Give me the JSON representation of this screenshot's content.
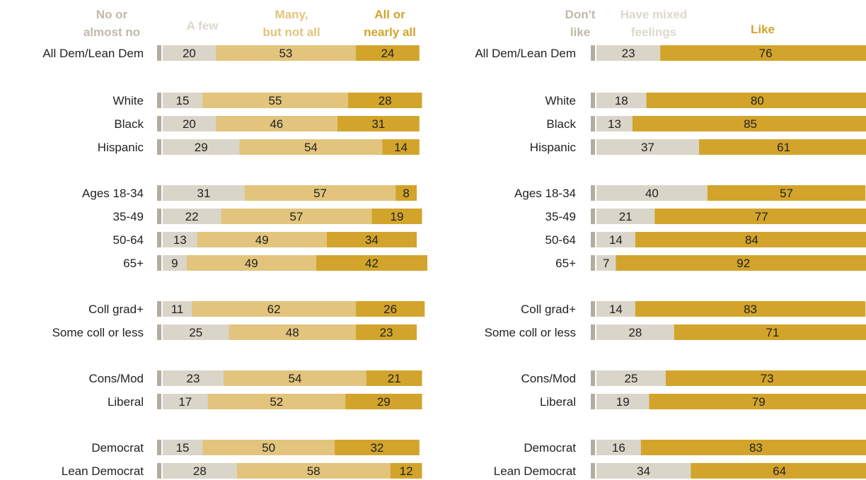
{
  "chart_data": [
    {
      "type": "bar",
      "stacked": "horizontal",
      "categories": [
        "All Dem/Lean Dem",
        "White",
        "Black",
        "Hispanic",
        "Ages 18-34",
        "35-49",
        "50-64",
        "65+",
        "Coll grad+",
        "Some coll or less",
        "Cons/Mod",
        "Liberal",
        "Democrat",
        "Lean Democrat"
      ],
      "series": [
        {
          "name": "No or almost no",
          "color": "#b3ad9f",
          "values": [
            null,
            null,
            null,
            null,
            null,
            null,
            null,
            null,
            null,
            null,
            null,
            null,
            null,
            null
          ]
        },
        {
          "name": "A few",
          "color": "#d9d5c8",
          "values": [
            20,
            15,
            20,
            29,
            31,
            22,
            13,
            9,
            11,
            25,
            23,
            17,
            15,
            28
          ]
        },
        {
          "name": "Many, but not all",
          "color": "#e2c47c",
          "values": [
            53,
            55,
            46,
            54,
            57,
            57,
            49,
            49,
            62,
            48,
            54,
            52,
            50,
            58
          ]
        },
        {
          "name": "All or nearly all",
          "color": "#d2a42b",
          "values": [
            24,
            28,
            31,
            14,
            8,
            19,
            34,
            42,
            26,
            23,
            21,
            29,
            32,
            12
          ]
        }
      ],
      "xlim": [
        0,
        100
      ]
    },
    {
      "type": "bar",
      "stacked": "horizontal",
      "categories": [
        "All Dem/Lean Dem",
        "White",
        "Black",
        "Hispanic",
        "Ages 18-34",
        "35-49",
        "50-64",
        "65+",
        "Coll grad+",
        "Some coll or less",
        "Cons/Mod",
        "Liberal",
        "Democrat",
        "Lean Democrat"
      ],
      "series": [
        {
          "name": "Don't like",
          "color": "#b3ad9f",
          "values": [
            null,
            null,
            null,
            null,
            null,
            null,
            null,
            null,
            null,
            null,
            null,
            null,
            null,
            null
          ]
        },
        {
          "name": "Have mixed feelings",
          "color": "#d9d5c8",
          "values": [
            23,
            18,
            13,
            37,
            40,
            21,
            14,
            7,
            14,
            28,
            25,
            19,
            16,
            34
          ]
        },
        {
          "name": "Like",
          "color": "#d2a42b",
          "values": [
            76,
            80,
            85,
            61,
            57,
            77,
            84,
            92,
            83,
            71,
            73,
            79,
            83,
            64
          ]
        }
      ],
      "xlim": [
        0,
        100
      ]
    }
  ],
  "legend1": {
    "no": [
      "No or",
      "almost no"
    ],
    "few": "A few",
    "many": [
      "Many,",
      "but not all"
    ],
    "all": [
      "All or",
      "nearly all"
    ]
  },
  "legend2": {
    "dontlike": [
      "Don't",
      "like"
    ],
    "mixed": [
      "Have mixed",
      "feelings"
    ],
    "like": "Like"
  }
}
